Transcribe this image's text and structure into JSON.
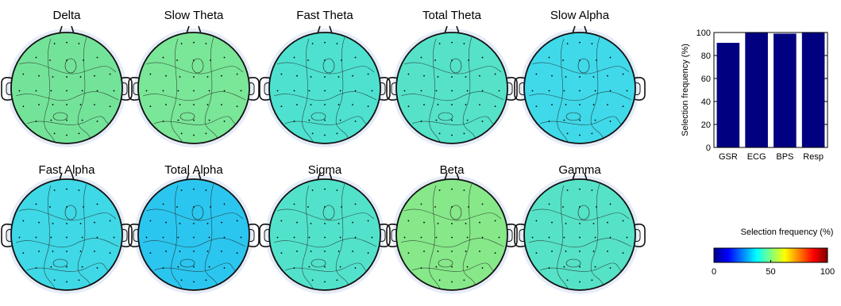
{
  "figure": {
    "topomaps": [
      {
        "title": "Delta",
        "color": "#74e39a"
      },
      {
        "title": "Slow Theta",
        "color": "#7ae697"
      },
      {
        "title": "Fast Theta",
        "color": "#4ee1cf"
      },
      {
        "title": "Total Theta",
        "color": "#55e2c9"
      },
      {
        "title": "Slow Alpha",
        "color": "#3fd9ea"
      },
      {
        "title": "Fast Alpha",
        "color": "#3fd8e6"
      },
      {
        "title": "Total Alpha",
        "color": "#2bc6ef"
      },
      {
        "title": "Sigma",
        "color": "#52e2cb"
      },
      {
        "title": "Beta",
        "color": "#86e889"
      },
      {
        "title": "Gamma",
        "color": "#56e2c6"
      }
    ],
    "colorbar": {
      "label": "Selection frequency (%)",
      "ticks": [
        "0",
        "50",
        "100"
      ],
      "colormap": "jet"
    }
  },
  "chart_data": [
    {
      "type": "bar",
      "categories": [
        "GSR",
        "ECG",
        "BPS",
        "Resp"
      ],
      "values": [
        91,
        100,
        99,
        100
      ],
      "ylabel": "Selection frequency (%)",
      "xlabel": "",
      "ylim": [
        0,
        100
      ],
      "yticks": [
        "0",
        "20",
        "40",
        "60",
        "80",
        "100"
      ],
      "bar_color": "#000080",
      "grid": false
    }
  ]
}
